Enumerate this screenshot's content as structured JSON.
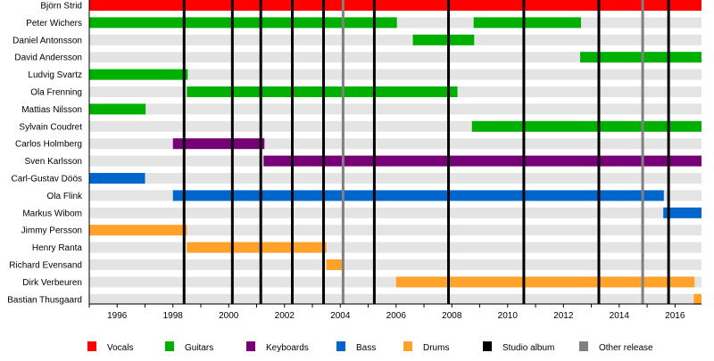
{
  "chart_data": {
    "type": "timeline",
    "title": "",
    "xlabel": "",
    "ylabel": "",
    "xlim": [
      1995.0,
      2016.95
    ],
    "x_ticks": [
      1996,
      1998,
      2000,
      2002,
      2004,
      2006,
      2008,
      2010,
      2012,
      2014,
      2016
    ],
    "colors": {
      "Vocals": "#ff0000",
      "Guitars": "#00b000",
      "Keyboards": "#760076",
      "Bass": "#0066cc",
      "Drums": "#ffa229",
      "Studio album": "#000000",
      "Other release": "#808080",
      "stripe": "#e4e4e4"
    },
    "members": [
      {
        "name": "Björn Strid",
        "spans": [
          {
            "role": "Vocals",
            "start": 1995.0,
            "end": 2016.95
          }
        ]
      },
      {
        "name": "Peter Wichers",
        "spans": [
          {
            "role": "Guitars",
            "start": 1995.0,
            "end": 2006.03
          },
          {
            "role": "Guitars",
            "start": 2008.78,
            "end": 2012.63
          }
        ]
      },
      {
        "name": "Daniel Antonsson",
        "spans": [
          {
            "role": "Guitars",
            "start": 2006.6,
            "end": 2008.8
          }
        ]
      },
      {
        "name": "David Andersson",
        "spans": [
          {
            "role": "Guitars",
            "start": 2012.6,
            "end": 2016.95
          }
        ]
      },
      {
        "name": "Ludvig Svartz",
        "spans": [
          {
            "role": "Guitars",
            "start": 1995.0,
            "end": 1998.53
          }
        ]
      },
      {
        "name": "Ola Frenning",
        "spans": [
          {
            "role": "Guitars",
            "start": 1998.5,
            "end": 2008.2
          }
        ]
      },
      {
        "name": "Mattias Nilsson",
        "spans": [
          {
            "role": "Guitars",
            "start": 1995.0,
            "end": 1997.02
          }
        ]
      },
      {
        "name": "Sylvain Coudret",
        "spans": [
          {
            "role": "Guitars",
            "start": 2008.72,
            "end": 2016.95
          }
        ]
      },
      {
        "name": "Carlos Holmberg",
        "spans": [
          {
            "role": "Keyboards",
            "start": 1998.0,
            "end": 2001.28
          }
        ]
      },
      {
        "name": "Sven Karlsson",
        "spans": [
          {
            "role": "Keyboards",
            "start": 2001.25,
            "end": 2016.95
          }
        ]
      },
      {
        "name": "Carl-Gustav Döös",
        "spans": [
          {
            "role": "Bass",
            "start": 1995.0,
            "end": 1997.0
          }
        ]
      },
      {
        "name": "Ola Flink",
        "spans": [
          {
            "role": "Bass",
            "start": 1998.0,
            "end": 2015.6
          }
        ]
      },
      {
        "name": "Markus Wibom",
        "spans": [
          {
            "role": "Bass",
            "start": 2015.58,
            "end": 2016.95
          }
        ]
      },
      {
        "name": "Jimmy Persson",
        "spans": [
          {
            "role": "Drums",
            "start": 1995.0,
            "end": 1998.5
          }
        ]
      },
      {
        "name": "Henry Ranta",
        "spans": [
          {
            "role": "Drums",
            "start": 1998.5,
            "end": 2003.5
          }
        ]
      },
      {
        "name": "Richard Evensand",
        "spans": [
          {
            "role": "Drums",
            "start": 2003.5,
            "end": 2004.1
          }
        ]
      },
      {
        "name": "Dirk Verbeuren",
        "spans": [
          {
            "role": "Drums",
            "start": 2006.0,
            "end": 2016.7
          }
        ]
      },
      {
        "name": "Bastian Thusgaard",
        "spans": [
          {
            "role": "Drums",
            "start": 2016.67,
            "end": 2016.95
          }
        ]
      }
    ],
    "studio_albums": [
      1998.4,
      2000.13,
      2001.15,
      2002.28,
      2003.4,
      2005.22,
      2007.88,
      2010.58,
      2013.27,
      2015.77
    ],
    "other_releases": [
      2004.1,
      2014.84
    ],
    "legend": [
      "Vocals",
      "Guitars",
      "Keyboards",
      "Bass",
      "Drums",
      "Studio album",
      "Other release"
    ],
    "legend_placement": "bottom"
  }
}
